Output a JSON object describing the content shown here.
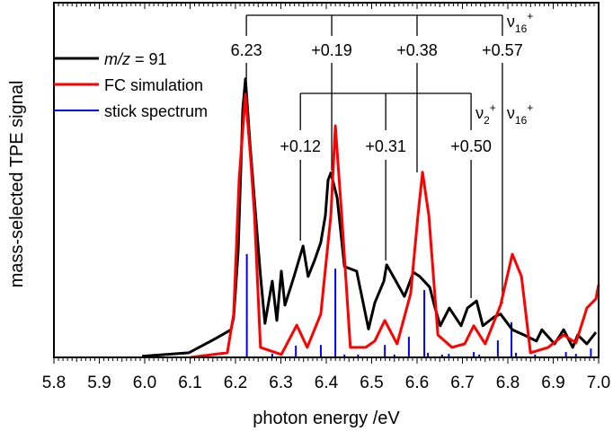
{
  "chart_data": {
    "type": "line",
    "xlabel": "photon energy /eV",
    "ylabel": "mass-selected TPE signal",
    "xlim": [
      5.8,
      7.0
    ],
    "ylim": [
      0,
      1
    ],
    "x_ticks": [
      "5.8",
      "5.9",
      "6.0",
      "6.1",
      "6.2",
      "6.3",
      "6.4",
      "6.5",
      "6.6",
      "6.7",
      "6.8",
      "6.9",
      "7.0"
    ],
    "grid": false,
    "legend_position": "top-left",
    "colors": {
      "experiment": "#000000",
      "simulation": "#ff0000",
      "sticks": "#0000ff"
    },
    "legend": {
      "experiment_italic": "m/z",
      "experiment_rest": " = 91",
      "simulation": "FC simulation",
      "sticks": "stick spectrum"
    },
    "series": [
      {
        "name": "m/z = 91",
        "kind": "line",
        "points": [
          [
            5.994,
            0.003
          ],
          [
            6.097,
            0.013
          ],
          [
            6.156,
            0.053
          ],
          [
            6.19,
            0.078
          ],
          [
            6.196,
            0.114
          ],
          [
            6.206,
            0.3
          ],
          [
            6.216,
            0.7
          ],
          [
            6.222,
            0.785
          ],
          [
            6.232,
            0.6
          ],
          [
            6.242,
            0.44
          ],
          [
            6.255,
            0.23
          ],
          [
            6.265,
            0.096
          ],
          [
            6.281,
            0.215
          ],
          [
            6.291,
            0.104
          ],
          [
            6.301,
            0.243
          ],
          [
            6.309,
            0.147
          ],
          [
            6.329,
            0.228
          ],
          [
            6.349,
            0.314
          ],
          [
            6.36,
            0.228
          ],
          [
            6.374,
            0.273
          ],
          [
            6.388,
            0.324
          ],
          [
            6.398,
            0.4
          ],
          [
            6.404,
            0.5
          ],
          [
            6.41,
            0.52
          ],
          [
            6.424,
            0.45
          ],
          [
            6.44,
            0.256
          ],
          [
            6.467,
            0.243
          ],
          [
            6.493,
            0.08
          ],
          [
            6.507,
            0.154
          ],
          [
            6.527,
            0.215
          ],
          [
            6.533,
            0.261
          ],
          [
            6.552,
            0.218
          ],
          [
            6.572,
            0.172
          ],
          [
            6.592,
            0.24
          ],
          [
            6.606,
            0.228
          ],
          [
            6.628,
            0.198
          ],
          [
            6.638,
            0.147
          ],
          [
            6.651,
            0.089
          ],
          [
            6.671,
            0.139
          ],
          [
            6.697,
            0.089
          ],
          [
            6.711,
            0.139
          ],
          [
            6.731,
            0.159
          ],
          [
            6.745,
            0.089
          ],
          [
            6.77,
            0.114
          ],
          [
            6.784,
            0.122
          ],
          [
            6.81,
            0.078
          ],
          [
            6.836,
            0.063
          ],
          [
            6.863,
            0.046
          ],
          [
            6.875,
            0.078
          ],
          [
            6.903,
            0.038
          ],
          [
            6.923,
            0.078
          ],
          [
            6.943,
            0.028
          ],
          [
            6.954,
            0.063
          ],
          [
            6.974,
            0.038
          ],
          [
            6.994,
            0.071
          ]
        ]
      },
      {
        "name": "FC simulation",
        "kind": "line",
        "points": [
          [
            6.101,
            0.0
          ],
          [
            6.182,
            0.013
          ],
          [
            6.196,
            0.122
          ],
          [
            6.208,
            0.5
          ],
          [
            6.222,
            0.742
          ],
          [
            6.234,
            0.55
          ],
          [
            6.242,
            0.4
          ],
          [
            6.255,
            0.028
          ],
          [
            6.301,
            0.008
          ],
          [
            6.335,
            0.091
          ],
          [
            6.358,
            0.028
          ],
          [
            6.388,
            0.122
          ],
          [
            6.41,
            0.4
          ],
          [
            6.42,
            0.653
          ],
          [
            6.434,
            0.4
          ],
          [
            6.453,
            0.028
          ],
          [
            6.487,
            0.028
          ],
          [
            6.507,
            0.046
          ],
          [
            6.529,
            0.104
          ],
          [
            6.556,
            0.038
          ],
          [
            6.586,
            0.18
          ],
          [
            6.602,
            0.4
          ],
          [
            6.612,
            0.522
          ],
          [
            6.626,
            0.4
          ],
          [
            6.646,
            0.063
          ],
          [
            6.677,
            0.028
          ],
          [
            6.705,
            0.038
          ],
          [
            6.725,
            0.089
          ],
          [
            6.75,
            0.038
          ],
          [
            6.784,
            0.147
          ],
          [
            6.81,
            0.291
          ],
          [
            6.83,
            0.228
          ],
          [
            6.85,
            0.013
          ],
          [
            6.889,
            0.028
          ],
          [
            6.923,
            0.063
          ],
          [
            6.95,
            0.041
          ],
          [
            6.974,
            0.139
          ],
          [
            6.994,
            0.165
          ],
          [
            7.0,
            0.205
          ]
        ]
      },
      {
        "name": "stick spectrum",
        "kind": "stick",
        "points": [
          [
            6.225,
            0.291
          ],
          [
            6.281,
            0.01
          ],
          [
            6.333,
            0.033
          ],
          [
            6.388,
            0.035
          ],
          [
            6.42,
            0.25
          ],
          [
            6.44,
            0.008
          ],
          [
            6.47,
            0.008
          ],
          [
            6.529,
            0.035
          ],
          [
            6.55,
            0.008
          ],
          [
            6.582,
            0.058
          ],
          [
            6.616,
            0.19
          ],
          [
            6.624,
            0.013
          ],
          [
            6.655,
            0.008
          ],
          [
            6.67,
            0.01
          ],
          [
            6.725,
            0.015
          ],
          [
            6.737,
            0.008
          ],
          [
            6.778,
            0.048
          ],
          [
            6.808,
            0.099
          ],
          [
            6.818,
            0.013
          ],
          [
            6.86,
            0.008
          ],
          [
            6.928,
            0.015
          ],
          [
            6.95,
            0.01
          ],
          [
            6.983,
            0.025
          ]
        ]
      }
    ],
    "annotations": {
      "progression_1": {
        "origin_label": "6.23",
        "origin": 6.222,
        "spacing": 0.188,
        "offset_labels": [
          "+0.19",
          "+0.38",
          "+0.57"
        ],
        "mode": "ν",
        "mode_sub": "16",
        "mode_sup": "+"
      },
      "progression_2": {
        "origin": 6.222,
        "offsets": [
          0.119,
          0.307,
          0.495
        ],
        "offset_labels": [
          "+0.12",
          "+0.31",
          "+0.50"
        ],
        "mode_a": "ν",
        "mode_a_sub": "2",
        "mode_a_sup": "+",
        "mode_b": "ν",
        "mode_b_sub": "16",
        "mode_b_sup": "+"
      }
    }
  }
}
